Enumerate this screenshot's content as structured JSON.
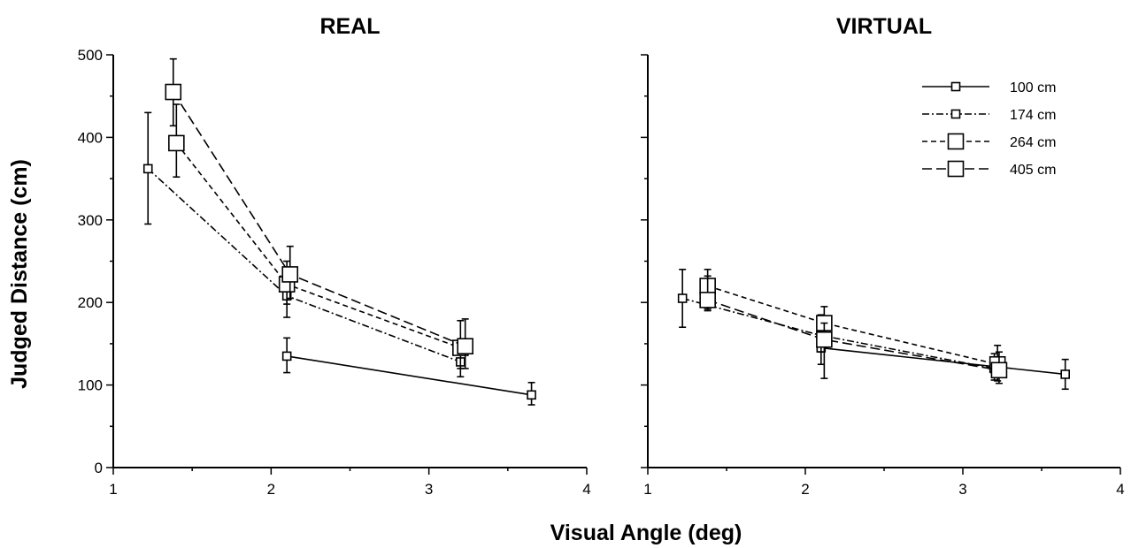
{
  "figure": {
    "ylabel": "Judged Distance (cm)",
    "xlabel": "Visual Angle (deg)"
  },
  "legend": [
    {
      "name": "100 cm",
      "line": "solid",
      "marker": "small-square"
    },
    {
      "name": "174 cm",
      "line": "dashdot",
      "marker": "small-square"
    },
    {
      "name": "264 cm",
      "line": "dashed",
      "marker": "large-square"
    },
    {
      "name": "405 cm",
      "line": "longdash",
      "marker": "large-square"
    }
  ],
  "chart_data": [
    {
      "type": "line",
      "title": "REAL",
      "xlim": [
        1,
        4
      ],
      "ylim": [
        0,
        500
      ],
      "xticks": [
        1,
        2,
        3,
        4
      ],
      "yticks": [
        0,
        100,
        200,
        300,
        400,
        500
      ],
      "xlabel": "Visual Angle (deg)",
      "ylabel": "Judged Distance (cm)",
      "series": [
        {
          "name": "100 cm",
          "points": [
            {
              "x": 2.1,
              "y": 135,
              "lo": 115,
              "hi": 157
            },
            {
              "x": 3.65,
              "y": 88,
              "lo": 76,
              "hi": 103
            }
          ]
        },
        {
          "name": "174 cm",
          "points": [
            {
              "x": 1.22,
              "y": 362,
              "lo": 295,
              "hi": 430
            },
            {
              "x": 2.1,
              "y": 208,
              "lo": 182,
              "hi": 232
            },
            {
              "x": 3.2,
              "y": 128,
              "lo": 110,
              "hi": 140
            }
          ]
        },
        {
          "name": "264 cm",
          "points": [
            {
              "x": 1.4,
              "y": 393,
              "lo": 352,
              "hi": 440
            },
            {
              "x": 2.1,
              "y": 222,
              "lo": 198,
              "hi": 250
            },
            {
              "x": 3.2,
              "y": 145,
              "lo": 120,
              "hi": 178
            }
          ]
        },
        {
          "name": "405 cm",
          "points": [
            {
              "x": 1.38,
              "y": 455,
              "lo": 414,
              "hi": 495
            },
            {
              "x": 2.12,
              "y": 234,
              "lo": 205,
              "hi": 268
            },
            {
              "x": 3.23,
              "y": 147,
              "lo": 120,
              "hi": 180
            }
          ]
        }
      ]
    },
    {
      "type": "line",
      "title": "VIRTUAL",
      "xlim": [
        1,
        4
      ],
      "ylim": [
        0,
        500
      ],
      "xticks": [
        1,
        2,
        3,
        4
      ],
      "yticks": [
        0,
        100,
        200,
        300,
        400,
        500
      ],
      "series": [
        {
          "name": "100 cm",
          "points": [
            {
              "x": 2.1,
              "y": 145,
              "lo": 125,
              "hi": 168
            },
            {
              "x": 3.65,
              "y": 113,
              "lo": 95,
              "hi": 131
            }
          ]
        },
        {
          "name": "174 cm",
          "points": [
            {
              "x": 1.22,
              "y": 205,
              "lo": 170,
              "hi": 240
            },
            {
              "x": 2.1,
              "y": 160,
              "lo": 140,
              "hi": 185
            },
            {
              "x": 3.2,
              "y": 120,
              "lo": 106,
              "hi": 138
            }
          ]
        },
        {
          "name": "264 cm",
          "points": [
            {
              "x": 1.38,
              "y": 220,
              "lo": 192,
              "hi": 240
            },
            {
              "x": 2.12,
              "y": 175,
              "lo": 150,
              "hi": 195
            },
            {
              "x": 3.22,
              "y": 125,
              "lo": 105,
              "hi": 148
            }
          ]
        },
        {
          "name": "405 cm",
          "points": [
            {
              "x": 1.38,
              "y": 203,
              "lo": 190,
              "hi": 232
            },
            {
              "x": 2.12,
              "y": 155,
              "lo": 108,
              "hi": 175
            },
            {
              "x": 3.23,
              "y": 118,
              "lo": 102,
              "hi": 140
            }
          ]
        }
      ]
    }
  ]
}
